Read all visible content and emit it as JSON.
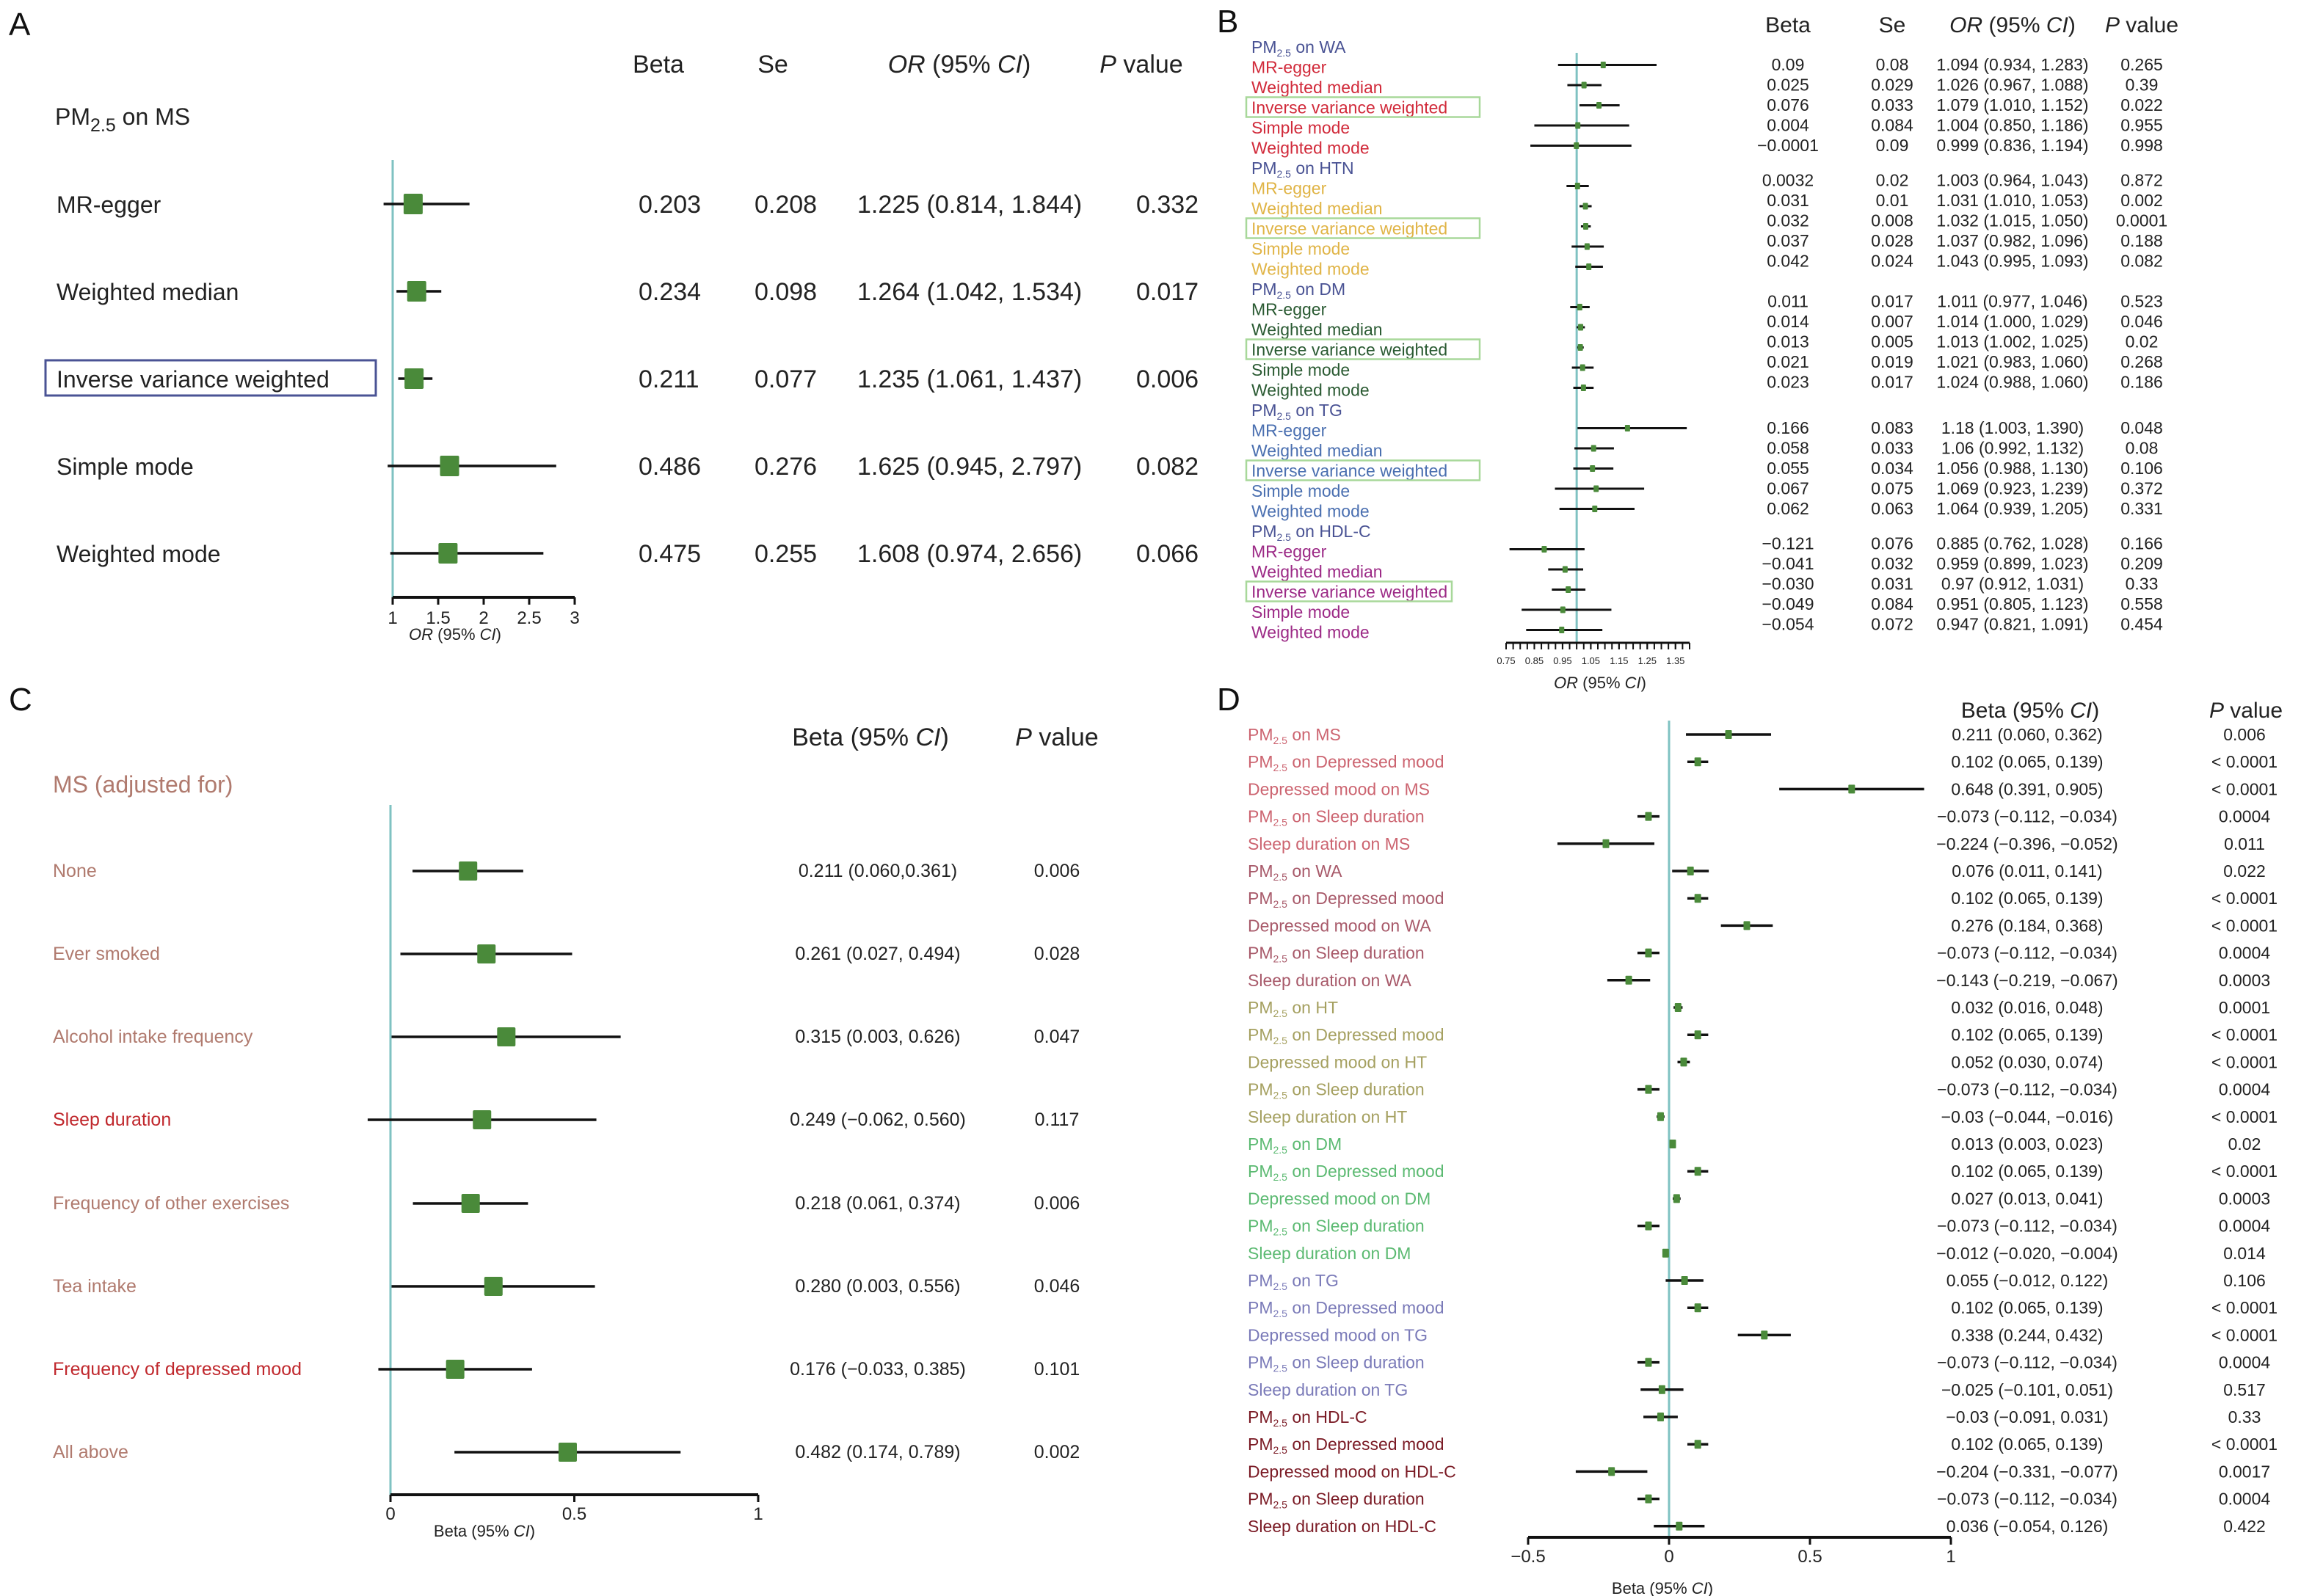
{
  "chart_data": [
    {
      "panel": "A",
      "type": "forest",
      "title": "PM2.5 on MS",
      "columns": [
        "Beta",
        "Se",
        "OR (95% CI)",
        "P value"
      ],
      "xlabel": "OR (95% CI)",
      "xlim": [
        1,
        3
      ],
      "xticks": [
        "1",
        "1.5",
        "2",
        "2.5",
        "3"
      ],
      "reference_line": 1,
      "highlight_label": "Inverse variance weighted",
      "highlight_color": "#4a5394",
      "rows": [
        {
          "label": "MR-egger",
          "beta": "0.203",
          "se": "0.208",
          "or_ci": "1.225 (0.814, 1.844)",
          "p": "0.332",
          "est": 1.225,
          "lo": 0.814,
          "hi": 1.844
        },
        {
          "label": "Weighted median",
          "beta": "0.234",
          "se": "0.098",
          "or_ci": "1.264 (1.042, 1.534)",
          "p": "0.017",
          "est": 1.264,
          "lo": 1.042,
          "hi": 1.534
        },
        {
          "label": "Inverse variance weighted",
          "beta": "0.211",
          "se": "0.077",
          "or_ci": "1.235 (1.061, 1.437)",
          "p": "0.006",
          "est": 1.235,
          "lo": 1.061,
          "hi": 1.437,
          "highlight": true
        },
        {
          "label": "Simple mode",
          "beta": "0.486",
          "se": "0.276",
          "or_ci": "1.625 (0.945, 2.797)",
          "p": "0.082",
          "est": 1.625,
          "lo": 0.945,
          "hi": 2.797
        },
        {
          "label": "Weighted mode",
          "beta": "0.475",
          "se": "0.255",
          "or_ci": "1.608 (0.974, 2.656)",
          "p": "0.066",
          "est": 1.608,
          "lo": 0.974,
          "hi": 2.656
        }
      ]
    },
    {
      "panel": "B",
      "type": "forest",
      "columns": [
        "Beta",
        "Se",
        "OR (95% CI)",
        "P value"
      ],
      "xlabel": "OR (95% CI)",
      "xlim": [
        0.75,
        1.4
      ],
      "xticks": [
        "0.75",
        "0.85",
        "0.95",
        "1.05",
        "1.15",
        "1.25",
        "1.35"
      ],
      "reference_line": 1,
      "highlight_color": "#a8d89a",
      "groups": [
        {
          "title": "PM2.5 on WA",
          "color": "#d12a3a",
          "rows": [
            {
              "label": "MR-egger",
              "beta": "0.09",
              "se": "0.08",
              "or_ci": "1.094 (0.934, 1.283)",
              "p": "0.265",
              "est": 1.094,
              "lo": 0.934,
              "hi": 1.283
            },
            {
              "label": "Weighted median",
              "beta": "0.025",
              "se": "0.029",
              "or_ci": "1.026 (0.967, 1.088)",
              "p": "0.39",
              "est": 1.026,
              "lo": 0.967,
              "hi": 1.088
            },
            {
              "label": "Inverse variance weighted",
              "beta": "0.076",
              "se": "0.033",
              "or_ci": "1.079 (1.010, 1.152)",
              "p": "0.022",
              "est": 1.079,
              "lo": 1.01,
              "hi": 1.152,
              "highlight": true
            },
            {
              "label": "Simple mode",
              "beta": "0.004",
              "se": "0.084",
              "or_ci": "1.004 (0.850, 1.186)",
              "p": "0.955",
              "est": 1.004,
              "lo": 0.85,
              "hi": 1.186
            },
            {
              "label": "Weighted mode",
              "beta": "−0.0001",
              "se": "0.09",
              "or_ci": "0.999 (0.836, 1.194)",
              "p": "0.998",
              "est": 0.999,
              "lo": 0.836,
              "hi": 1.194
            }
          ]
        },
        {
          "title": "PM2.5 on HTN",
          "color": "#e0b446",
          "rows": [
            {
              "label": "MR-egger",
              "beta": "0.0032",
              "se": "0.02",
              "or_ci": "1.003 (0.964, 1.043)",
              "p": "0.872",
              "est": 1.003,
              "lo": 0.964,
              "hi": 1.043
            },
            {
              "label": "Weighted median",
              "beta": "0.031",
              "se": "0.01",
              "or_ci": "1.031 (1.010, 1.053)",
              "p": "0.002",
              "est": 1.031,
              "lo": 1.01,
              "hi": 1.053
            },
            {
              "label": "Inverse variance weighted",
              "beta": "0.032",
              "se": "0.008",
              "or_ci": "1.032 (1.015, 1.050)",
              "p": "0.0001",
              "est": 1.032,
              "lo": 1.015,
              "hi": 1.05,
              "highlight": true
            },
            {
              "label": "Simple mode",
              "beta": "0.037",
              "se": "0.028",
              "or_ci": "1.037 (0.982, 1.096)",
              "p": "0.188",
              "est": 1.037,
              "lo": 0.982,
              "hi": 1.096
            },
            {
              "label": "Weighted mode",
              "beta": "0.042",
              "se": "0.024",
              "or_ci": "1.043 (0.995, 1.093)",
              "p": "0.082",
              "est": 1.043,
              "lo": 0.995,
              "hi": 1.093
            }
          ]
        },
        {
          "title": "PM2.5 on DM",
          "color": "#2a5a32",
          "rows": [
            {
              "label": "MR-egger",
              "beta": "0.011",
              "se": "0.017",
              "or_ci": "1.011 (0.977, 1.046)",
              "p": "0.523",
              "est": 1.011,
              "lo": 0.977,
              "hi": 1.046
            },
            {
              "label": "Weighted median",
              "beta": "0.014",
              "se": "0.007",
              "or_ci": "1.014 (1.000, 1.029)",
              "p": "0.046",
              "est": 1.014,
              "lo": 1.0,
              "hi": 1.029
            },
            {
              "label": "Inverse variance weighted",
              "beta": "0.013",
              "se": "0.005",
              "or_ci": "1.013 (1.002, 1.025)",
              "p": "0.02",
              "est": 1.013,
              "lo": 1.002,
              "hi": 1.025,
              "highlight": true
            },
            {
              "label": "Simple mode",
              "beta": "0.021",
              "se": "0.019",
              "or_ci": "1.021 (0.983, 1.060)",
              "p": "0.268",
              "est": 1.021,
              "lo": 0.983,
              "hi": 1.06
            },
            {
              "label": "Weighted mode",
              "beta": "0.023",
              "se": "0.017",
              "or_ci": "1.024 (0.988, 1.060)",
              "p": "0.186",
              "est": 1.024,
              "lo": 0.988,
              "hi": 1.06
            }
          ]
        },
        {
          "title": "PM2.5 on TG",
          "color": "#4a6fb0",
          "rows": [
            {
              "label": "MR-egger",
              "beta": "0.166",
              "se": "0.083",
              "or_ci": "1.18 (1.003, 1.390)",
              "p": "0.048",
              "est": 1.18,
              "lo": 1.003,
              "hi": 1.39
            },
            {
              "label": "Weighted median",
              "beta": "0.058",
              "se": "0.033",
              "or_ci": "1.06 (0.992, 1.132)",
              "p": "0.08",
              "est": 1.06,
              "lo": 0.992,
              "hi": 1.132
            },
            {
              "label": "Inverse variance weighted",
              "beta": "0.055",
              "se": "0.034",
              "or_ci": "1.056 (0.988, 1.130)",
              "p": "0.106",
              "est": 1.056,
              "lo": 0.988,
              "hi": 1.13,
              "highlight": true
            },
            {
              "label": "Simple mode",
              "beta": "0.067",
              "se": "0.075",
              "or_ci": "1.069 (0.923, 1.239)",
              "p": "0.372",
              "est": 1.069,
              "lo": 0.923,
              "hi": 1.239
            },
            {
              "label": "Weighted mode",
              "beta": "0.062",
              "se": "0.063",
              "or_ci": "1.064 (0.939, 1.205)",
              "p": "0.331",
              "est": 1.064,
              "lo": 0.939,
              "hi": 1.205
            }
          ]
        },
        {
          "title": "PM2.5 on HDL-C",
          "color": "#9c2a86",
          "rows": [
            {
              "label": "MR-egger",
              "beta": "−0.121",
              "se": "0.076",
              "or_ci": "0.885 (0.762, 1.028)",
              "p": "0.166",
              "est": 0.885,
              "lo": 0.762,
              "hi": 1.028
            },
            {
              "label": "Weighted median",
              "beta": "−0.041",
              "se": "0.032",
              "or_ci": "0.959 (0.899, 1.023)",
              "p": "0.209",
              "est": 0.959,
              "lo": 0.899,
              "hi": 1.023
            },
            {
              "label": "Inverse variance weighted",
              "beta": "−0.030",
              "se": "0.031",
              "or_ci": "0.97 (0.912, 1.031)",
              "p": "0.33",
              "est": 0.97,
              "lo": 0.912,
              "hi": 1.031,
              "highlight": true
            },
            {
              "label": "Simple mode",
              "beta": "−0.049",
              "se": "0.084",
              "or_ci": "0.951 (0.805, 1.123)",
              "p": "0.558",
              "est": 0.951,
              "lo": 0.805,
              "hi": 1.123
            },
            {
              "label": "Weighted mode",
              "beta": "−0.054",
              "se": "0.072",
              "or_ci": "0.947 (0.821, 1.091)",
              "p": "0.454",
              "est": 0.947,
              "lo": 0.821,
              "hi": 1.091
            }
          ]
        }
      ]
    },
    {
      "panel": "C",
      "type": "forest",
      "title": "MS (adjusted for)",
      "title_color": "#b07a6e",
      "columns": [
        "Beta (95% CI)",
        "P value"
      ],
      "xlabel": "Beta (95% CI)",
      "xlim": [
        0,
        1
      ],
      "xticks": [
        "0",
        "0.5",
        "1"
      ],
      "reference_line": 0,
      "rows": [
        {
          "label": "None",
          "color": "#b07a6e",
          "beta_ci": "0.211 (0.060,0.361)",
          "p": "0.006",
          "est": 0.211,
          "lo": 0.06,
          "hi": 0.361
        },
        {
          "label": "Ever smoked",
          "color": "#b07a6e",
          "beta_ci": "0.261 (0.027, 0.494)",
          "p": "0.028",
          "est": 0.261,
          "lo": 0.027,
          "hi": 0.494
        },
        {
          "label": "Alcohol intake frequency",
          "color": "#b07a6e",
          "beta_ci": "0.315 (0.003, 0.626)",
          "p": "0.047",
          "est": 0.315,
          "lo": 0.003,
          "hi": 0.626
        },
        {
          "label": "Sleep duration",
          "color": "#c0282d",
          "beta_ci": "0.249 (−0.062, 0.560)",
          "p": "0.117",
          "est": 0.249,
          "lo": -0.062,
          "hi": 0.56
        },
        {
          "label": "Frequency of other exercises",
          "color": "#b07a6e",
          "beta_ci": "0.218 (0.061, 0.374)",
          "p": "0.006",
          "est": 0.218,
          "lo": 0.061,
          "hi": 0.374
        },
        {
          "label": "Tea intake",
          "color": "#b07a6e",
          "beta_ci": "0.280 (0.003, 0.556)",
          "p": "0.046",
          "est": 0.28,
          "lo": 0.003,
          "hi": 0.556
        },
        {
          "label": "Frequency of depressed mood",
          "color": "#c0282d",
          "beta_ci": "0.176 (−0.033, 0.385)",
          "p": "0.101",
          "est": 0.176,
          "lo": -0.033,
          "hi": 0.385
        },
        {
          "label": "All above",
          "color": "#b07a6e",
          "beta_ci": "0.482 (0.174, 0.789)",
          "p": "0.002",
          "est": 0.482,
          "lo": 0.174,
          "hi": 0.789
        }
      ]
    },
    {
      "panel": "D",
      "type": "forest",
      "columns": [
        "Beta (95% CI)",
        "P value"
      ],
      "xlabel": "Beta (95% CI)",
      "xlim": [
        -0.5,
        1
      ],
      "xticks": [
        "−0.5",
        "0",
        "0.5",
        "1"
      ],
      "reference_line": 0,
      "rows": [
        {
          "label": "PM2.5 on MS",
          "color": "#cc6470",
          "beta_ci": "0.211 (0.060, 0.362)",
          "p": "0.006",
          "est": 0.211,
          "lo": 0.06,
          "hi": 0.362
        },
        {
          "label": "PM2.5 on Depressed mood",
          "color": "#cc6470",
          "beta_ci": "0.102 (0.065, 0.139)",
          "p": "< 0.0001",
          "est": 0.102,
          "lo": 0.065,
          "hi": 0.139
        },
        {
          "label": "Depressed mood on MS",
          "color": "#cc6470",
          "beta_ci": "0.648 (0.391, 0.905)",
          "p": "< 0.0001",
          "est": 0.648,
          "lo": 0.391,
          "hi": 0.905
        },
        {
          "label": "PM2.5 on Sleep duration",
          "color": "#cc6470",
          "beta_ci": "−0.073 (−0.112, −0.034)",
          "p": "0.0004",
          "est": -0.073,
          "lo": -0.112,
          "hi": -0.034
        },
        {
          "label": "Sleep duration on MS",
          "color": "#cc6470",
          "beta_ci": "−0.224 (−0.396, −0.052)",
          "p": "0.011",
          "est": -0.224,
          "lo": -0.396,
          "hi": -0.052
        },
        {
          "label": "PM2.5 on WA",
          "color": "#a85a6a",
          "beta_ci": "0.076 (0.011, 0.141)",
          "p": "0.022",
          "est": 0.076,
          "lo": 0.011,
          "hi": 0.141
        },
        {
          "label": "PM2.5 on Depressed mood",
          "color": "#a85a6a",
          "beta_ci": "0.102 (0.065, 0.139)",
          "p": "< 0.0001",
          "est": 0.102,
          "lo": 0.065,
          "hi": 0.139
        },
        {
          "label": "Depressed mood on WA",
          "color": "#a85a6a",
          "beta_ci": "0.276 (0.184, 0.368)",
          "p": "< 0.0001",
          "est": 0.276,
          "lo": 0.184,
          "hi": 0.368
        },
        {
          "label": "PM2.5 on Sleep duration",
          "color": "#a85a6a",
          "beta_ci": "−0.073 (−0.112, −0.034)",
          "p": "0.0004",
          "est": -0.073,
          "lo": -0.112,
          "hi": -0.034
        },
        {
          "label": "Sleep duration on WA",
          "color": "#a85a6a",
          "beta_ci": "−0.143 (−0.219, −0.067)",
          "p": "0.0003",
          "est": -0.143,
          "lo": -0.219,
          "hi": -0.067
        },
        {
          "label": "PM2.5 on HT",
          "color": "#a5a060",
          "beta_ci": "0.032 (0.016, 0.048)",
          "p": "0.0001",
          "est": 0.032,
          "lo": 0.016,
          "hi": 0.048
        },
        {
          "label": "PM2.5 on Depressed mood",
          "color": "#a5a060",
          "beta_ci": "0.102 (0.065, 0.139)",
          "p": "< 0.0001",
          "est": 0.102,
          "lo": 0.065,
          "hi": 0.139
        },
        {
          "label": "Depressed mood on HT",
          "color": "#a5a060",
          "beta_ci": "0.052 (0.030, 0.074)",
          "p": "< 0.0001",
          "est": 0.052,
          "lo": 0.03,
          "hi": 0.074
        },
        {
          "label": "PM2.5 on Sleep duration",
          "color": "#a5a060",
          "beta_ci": "−0.073 (−0.112, −0.034)",
          "p": "0.0004",
          "est": -0.073,
          "lo": -0.112,
          "hi": -0.034
        },
        {
          "label": "Sleep duration on HT",
          "color": "#a5a060",
          "beta_ci": "−0.03 (−0.044, −0.016)",
          "p": "< 0.0001",
          "est": -0.03,
          "lo": -0.044,
          "hi": -0.016
        },
        {
          "label": "PM2.5 on DM",
          "color": "#5cba72",
          "beta_ci": "0.013 (0.003, 0.023)",
          "p": "0.02",
          "est": 0.013,
          "lo": 0.003,
          "hi": 0.023
        },
        {
          "label": "PM2.5 on Depressed mood",
          "color": "#5cba72",
          "beta_ci": "0.102 (0.065, 0.139)",
          "p": "< 0.0001",
          "est": 0.102,
          "lo": 0.065,
          "hi": 0.139
        },
        {
          "label": "Depressed mood on DM",
          "color": "#5cba72",
          "beta_ci": "0.027 (0.013, 0.041)",
          "p": "0.0003",
          "est": 0.027,
          "lo": 0.013,
          "hi": 0.041
        },
        {
          "label": "PM2.5 on Sleep duration",
          "color": "#5cba72",
          "beta_ci": "−0.073 (−0.112, −0.034)",
          "p": "0.0004",
          "est": -0.073,
          "lo": -0.112,
          "hi": -0.034
        },
        {
          "label": "Sleep duration on DM",
          "color": "#5cba72",
          "beta_ci": "−0.012 (−0.020, −0.004)",
          "p": "0.014",
          "est": -0.012,
          "lo": -0.02,
          "hi": -0.004
        },
        {
          "label": "PM2.5 on TG",
          "color": "#7a7ab8",
          "beta_ci": "0.055 (−0.012, 0.122)",
          "p": "0.106",
          "est": 0.055,
          "lo": -0.012,
          "hi": 0.122
        },
        {
          "label": "PM2.5 on Depressed mood",
          "color": "#7a7ab8",
          "beta_ci": "0.102 (0.065, 0.139)",
          "p": "< 0.0001",
          "est": 0.102,
          "lo": 0.065,
          "hi": 0.139
        },
        {
          "label": "Depressed mood on TG",
          "color": "#7a7ab8",
          "beta_ci": "0.338 (0.244, 0.432)",
          "p": "< 0.0001",
          "est": 0.338,
          "lo": 0.244,
          "hi": 0.432
        },
        {
          "label": "PM2.5 on Sleep duration",
          "color": "#7a7ab8",
          "beta_ci": "−0.073 (−0.112, −0.034)",
          "p": "0.0004",
          "est": -0.073,
          "lo": -0.112,
          "hi": -0.034
        },
        {
          "label": "Sleep duration on TG",
          "color": "#7a7ab8",
          "beta_ci": "−0.025 (−0.101, 0.051)",
          "p": "0.517",
          "est": -0.025,
          "lo": -0.101,
          "hi": 0.051
        },
        {
          "label": "PM2.5 on HDL-C",
          "color": "#7a1a24",
          "beta_ci": "−0.03 (−0.091, 0.031)",
          "p": "0.33",
          "est": -0.03,
          "lo": -0.091,
          "hi": 0.031
        },
        {
          "label": "PM2.5 on Depressed mood",
          "color": "#7a1a24",
          "beta_ci": "0.102 (0.065, 0.139)",
          "p": "< 0.0001",
          "est": 0.102,
          "lo": 0.065,
          "hi": 0.139
        },
        {
          "label": "Depressed mood on HDL-C",
          "color": "#7a1a24",
          "beta_ci": "−0.204 (−0.331, −0.077)",
          "p": "0.0017",
          "est": -0.204,
          "lo": -0.331,
          "hi": -0.077
        },
        {
          "label": "PM2.5 on Sleep duration",
          "color": "#7a1a24",
          "beta_ci": "−0.073 (−0.112, −0.034)",
          "p": "0.0004",
          "est": -0.073,
          "lo": -0.112,
          "hi": -0.034
        },
        {
          "label": "Sleep duration on HDL-C",
          "color": "#7a1a24",
          "beta_ci": "0.036 (−0.054, 0.126)",
          "p": "0.422",
          "est": 0.036,
          "lo": -0.054,
          "hi": 0.126
        }
      ]
    }
  ],
  "panels": {
    "A": "A",
    "B": "B",
    "C": "C",
    "D": "D"
  },
  "colors": {
    "marker": "#4a8a3a",
    "ref_line": "#7fc2c2",
    "ci_line": "#111111",
    "group_title_b": "#4a5394"
  }
}
